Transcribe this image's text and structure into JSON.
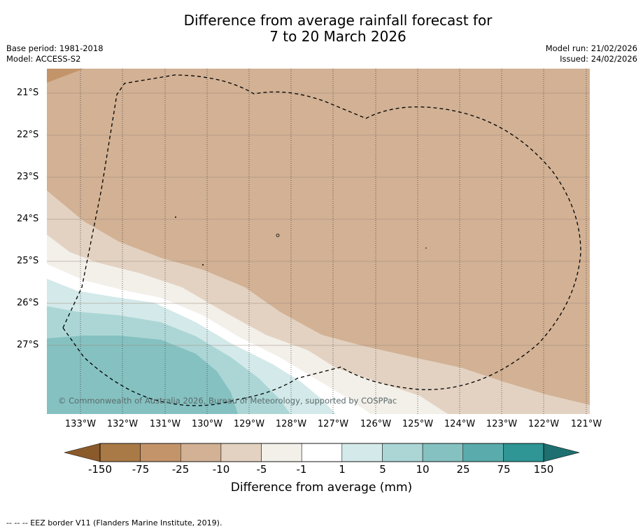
{
  "title_line1": "Difference from average rainfall forecast for",
  "title_line2": "7 to 20 March 2026",
  "base_period": "Base period: 1981-2018",
  "model": "Model: ACCESS-S2",
  "model_run": "Model run: 21/02/2026",
  "issued": "Issued: 24/02/2026",
  "copyright": "© Commonwealth of Australia 2026, Bureau of Meteorology, supported by COSPPac",
  "lat_labels": [
    "21°S",
    "22°S",
    "23°S",
    "24°S",
    "25°S",
    "26°S",
    "27°S"
  ],
  "lon_labels": [
    "133°W",
    "132°W",
    "131°W",
    "130°W",
    "129°W",
    "128°W",
    "127°W",
    "126°W",
    "125°W",
    "124°W",
    "123°W",
    "122°W",
    "121°W"
  ],
  "colorbar": {
    "title": "Difference from average (mm)",
    "tick_labels": [
      "-150",
      "-75",
      "-25",
      "-10",
      "-5",
      "-1",
      "1",
      "5",
      "10",
      "25",
      "75",
      "150"
    ],
    "colors": [
      "#8b5a2b",
      "#a97a46",
      "#c3946a",
      "#d2b194",
      "#e3d2c2",
      "#f3efe9",
      "#ffffff",
      "#d4e9e9",
      "#acd6d6",
      "#85c1c1",
      "#5aabab",
      "#2f9595",
      "#1e6f6f"
    ]
  },
  "footer": "--  --  -- EEZ border V11 (Flanders Marine Institute, 2019)."
}
